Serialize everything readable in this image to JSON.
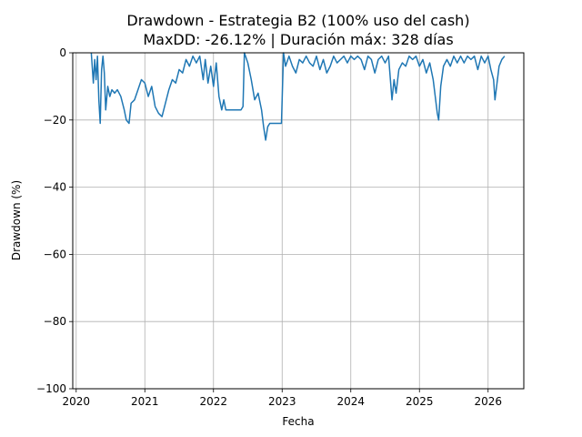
{
  "chart_data": {
    "type": "line",
    "title_line1": "Drawdown - Estrategia B2 (100% uso del cash)",
    "title_line2": "MaxDD: -26.12% | Duración máx: 328 días",
    "xlabel": "Fecha",
    "ylabel": "Drawdown (%)",
    "xlim": [
      2019.95,
      2026.52
    ],
    "ylim": [
      -100,
      0
    ],
    "x_ticks": [
      2020,
      2021,
      2022,
      2023,
      2024,
      2025,
      2026
    ],
    "x_tick_labels": [
      "2020",
      "2021",
      "2022",
      "2023",
      "2024",
      "2025",
      "2026"
    ],
    "y_ticks": [
      0,
      -20,
      -40,
      -60,
      -80,
      -100
    ],
    "y_tick_labels": [
      "0",
      "−20",
      "−40",
      "−60",
      "−80",
      "−100"
    ],
    "grid": true,
    "line_color": "#1f77b4",
    "series": [
      {
        "points": [
          [
            2020.22,
            0
          ],
          [
            2020.25,
            -9
          ],
          [
            2020.27,
            -2
          ],
          [
            2020.29,
            -8
          ],
          [
            2020.31,
            -1
          ],
          [
            2020.33,
            -14
          ],
          [
            2020.35,
            -21
          ],
          [
            2020.37,
            -5
          ],
          [
            2020.39,
            -1
          ],
          [
            2020.41,
            -6
          ],
          [
            2020.43,
            -17
          ],
          [
            2020.46,
            -10
          ],
          [
            2020.49,
            -13
          ],
          [
            2020.52,
            -11
          ],
          [
            2020.56,
            -12
          ],
          [
            2020.6,
            -11
          ],
          [
            2020.65,
            -13
          ],
          [
            2020.7,
            -17
          ],
          [
            2020.73,
            -20
          ],
          [
            2020.77,
            -21
          ],
          [
            2020.8,
            -15
          ],
          [
            2020.85,
            -14
          ],
          [
            2020.9,
            -11
          ],
          [
            2020.95,
            -8
          ],
          [
            2021.0,
            -9
          ],
          [
            2021.05,
            -13
          ],
          [
            2021.1,
            -10
          ],
          [
            2021.15,
            -16
          ],
          [
            2021.2,
            -18
          ],
          [
            2021.25,
            -19
          ],
          [
            2021.3,
            -15
          ],
          [
            2021.35,
            -11
          ],
          [
            2021.4,
            -8
          ],
          [
            2021.45,
            -9
          ],
          [
            2021.5,
            -5
          ],
          [
            2021.55,
            -6
          ],
          [
            2021.6,
            -2
          ],
          [
            2021.65,
            -4
          ],
          [
            2021.7,
            -1
          ],
          [
            2021.75,
            -3
          ],
          [
            2021.8,
            -1
          ],
          [
            2021.85,
            -8
          ],
          [
            2021.88,
            -2
          ],
          [
            2021.92,
            -9
          ],
          [
            2021.96,
            -4
          ],
          [
            2022.0,
            -10
          ],
          [
            2022.04,
            -3
          ],
          [
            2022.08,
            -13
          ],
          [
            2022.12,
            -17
          ],
          [
            2022.15,
            -14
          ],
          [
            2022.18,
            -17
          ],
          [
            2022.22,
            -17
          ],
          [
            2022.28,
            -17
          ],
          [
            2022.34,
            -17
          ],
          [
            2022.4,
            -17
          ],
          [
            2022.43,
            -16
          ],
          [
            2022.45,
            0
          ],
          [
            2022.5,
            -3
          ],
          [
            2022.55,
            -8
          ],
          [
            2022.6,
            -14
          ],
          [
            2022.65,
            -12
          ],
          [
            2022.7,
            -17
          ],
          [
            2022.73,
            -22
          ],
          [
            2022.76,
            -26
          ],
          [
            2022.79,
            -22
          ],
          [
            2022.82,
            -21
          ],
          [
            2022.88,
            -21
          ],
          [
            2022.94,
            -21
          ],
          [
            2022.99,
            -21
          ],
          [
            2023.02,
            0
          ],
          [
            2023.05,
            -4
          ],
          [
            2023.1,
            -1
          ],
          [
            2023.15,
            -4
          ],
          [
            2023.2,
            -6
          ],
          [
            2023.25,
            -2
          ],
          [
            2023.3,
            -3
          ],
          [
            2023.35,
            -1
          ],
          [
            2023.4,
            -3
          ],
          [
            2023.45,
            -4
          ],
          [
            2023.5,
            -1
          ],
          [
            2023.55,
            -5
          ],
          [
            2023.6,
            -2
          ],
          [
            2023.65,
            -6
          ],
          [
            2023.7,
            -4
          ],
          [
            2023.75,
            -1
          ],
          [
            2023.8,
            -3
          ],
          [
            2023.85,
            -2
          ],
          [
            2023.9,
            -1
          ],
          [
            2023.95,
            -3
          ],
          [
            2024.0,
            -1
          ],
          [
            2024.05,
            -2
          ],
          [
            2024.1,
            -1
          ],
          [
            2024.15,
            -2
          ],
          [
            2024.2,
            -5
          ],
          [
            2024.25,
            -1
          ],
          [
            2024.3,
            -2
          ],
          [
            2024.35,
            -6
          ],
          [
            2024.4,
            -2
          ],
          [
            2024.45,
            -1
          ],
          [
            2024.5,
            -3
          ],
          [
            2024.55,
            -1
          ],
          [
            2024.6,
            -14
          ],
          [
            2024.63,
            -8
          ],
          [
            2024.66,
            -12
          ],
          [
            2024.7,
            -5
          ],
          [
            2024.75,
            -3
          ],
          [
            2024.8,
            -4
          ],
          [
            2024.85,
            -1
          ],
          [
            2024.9,
            -2
          ],
          [
            2024.95,
            -1
          ],
          [
            2025.0,
            -4
          ],
          [
            2025.05,
            -2
          ],
          [
            2025.1,
            -6
          ],
          [
            2025.15,
            -3
          ],
          [
            2025.2,
            -8
          ],
          [
            2025.23,
            -13
          ],
          [
            2025.26,
            -18
          ],
          [
            2025.28,
            -20
          ],
          [
            2025.31,
            -10
          ],
          [
            2025.35,
            -4
          ],
          [
            2025.4,
            -2
          ],
          [
            2025.45,
            -4
          ],
          [
            2025.5,
            -1
          ],
          [
            2025.55,
            -3
          ],
          [
            2025.6,
            -1
          ],
          [
            2025.65,
            -3
          ],
          [
            2025.7,
            -1
          ],
          [
            2025.75,
            -2
          ],
          [
            2025.8,
            -1
          ],
          [
            2025.85,
            -5
          ],
          [
            2025.9,
            -1
          ],
          [
            2025.95,
            -3
          ],
          [
            2026.0,
            -1
          ],
          [
            2026.04,
            -5
          ],
          [
            2026.08,
            -8
          ],
          [
            2026.1,
            -14
          ],
          [
            2026.13,
            -9
          ],
          [
            2026.16,
            -4
          ],
          [
            2026.2,
            -2
          ],
          [
            2026.24,
            -1
          ]
        ]
      }
    ]
  }
}
